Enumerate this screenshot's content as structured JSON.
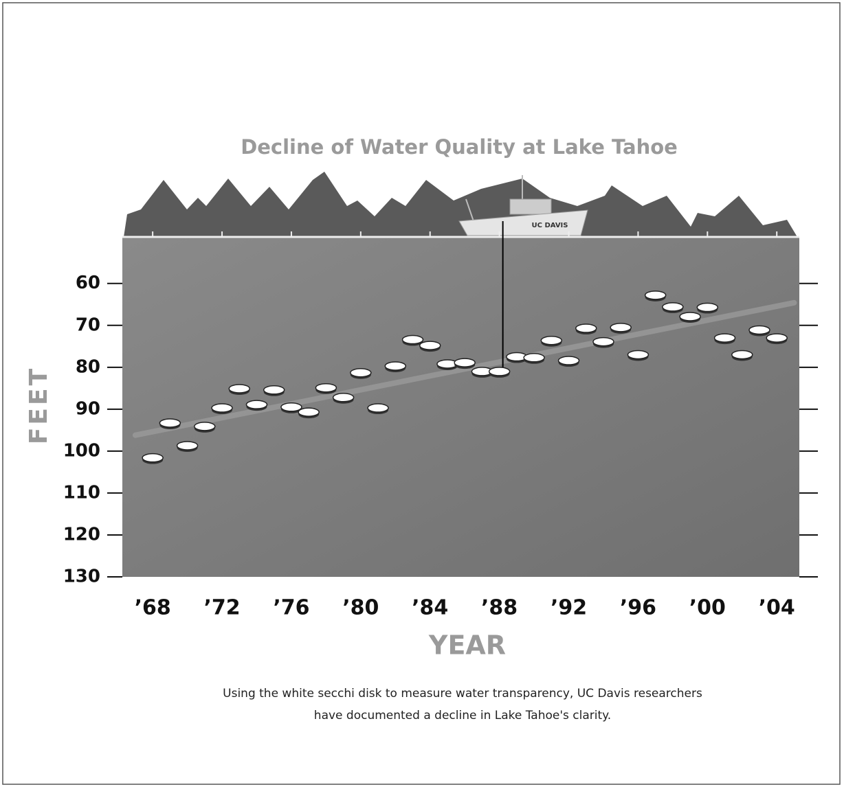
{
  "chart_data": {
    "type": "scatter",
    "title": "Decline of Water Quality at Lake Tahoe",
    "y_label": "FEET",
    "x_label": "YEAR",
    "caption": [
      "Using the white secchi disk to measure water transparency, UC Davis researchers",
      "have documented a decline in Lake Tahoe's clarity."
    ],
    "boat_label": "UC DAVIS",
    "x": [
      1968,
      1969,
      1970,
      1971,
      1972,
      1973,
      1974,
      1975,
      1976,
      1977,
      1978,
      1979,
      1980,
      1981,
      1982,
      1983,
      1984,
      1985,
      1986,
      1987,
      1988,
      1989,
      1990,
      1991,
      1992,
      1993,
      1994,
      1995,
      1996,
      1997,
      1998,
      1999,
      2000,
      2001,
      2002,
      2003,
      2004
    ],
    "values": [
      101.6,
      93.3,
      98.7,
      94.1,
      89.7,
      85.1,
      88.9,
      85.4,
      89.5,
      90.7,
      84.9,
      87.2,
      81.3,
      89.7,
      79.7,
      73.4,
      74.8,
      79.2,
      78.9,
      81.0,
      81.0,
      77.5,
      77.7,
      73.6,
      78.4,
      70.7,
      73.9,
      70.5,
      77.0,
      62.8,
      65.6,
      67.9,
      65.7,
      73.0,
      77.0,
      71.1,
      73.0
    ],
    "marker_color": "#ffffff",
    "trendline": {
      "x": [
        1967,
        2005
      ],
      "values": [
        96.2,
        64.6
      ],
      "color": "#9a9a9a"
    },
    "xlim": [
      1966.25,
      2005.3
    ],
    "ylim": [
      130,
      48.9
    ],
    "xticks": [
      {
        "value": 1968,
        "label": "’68"
      },
      {
        "value": 1972,
        "label": "’72"
      },
      {
        "value": 1976,
        "label": "’76"
      },
      {
        "value": 1980,
        "label": "’80"
      },
      {
        "value": 1984,
        "label": "’84"
      },
      {
        "value": 1988,
        "label": "’88"
      },
      {
        "value": 1992,
        "label": "’92"
      },
      {
        "value": 1996,
        "label": "’96"
      },
      {
        "value": 2000,
        "label": "’00"
      },
      {
        "value": 2004,
        "label": "’04"
      }
    ],
    "yticks": [
      60,
      70,
      80,
      90,
      100,
      110,
      120,
      130
    ]
  }
}
